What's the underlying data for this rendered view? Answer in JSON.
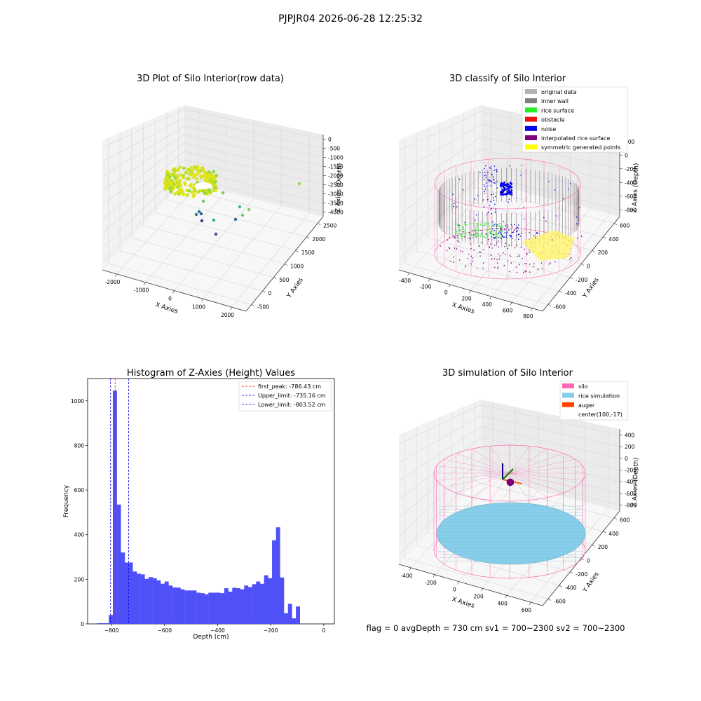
{
  "figure": {
    "suptitle": "PJPJR04 2026-06-28 12:25:32",
    "footer": "flag = 0     avgDepth = 730 cm  sv1 = 700~2300  sv2 = 700~2300"
  },
  "colors": {
    "grey": "#b3b3b3",
    "dark_grey": "#808080",
    "green": "#22ee22",
    "red": "#ee1111",
    "blue": "#0000ee",
    "purple": "#800080",
    "yellow": "#ffff00",
    "pink": "#ff69b4",
    "skyblue": "#87ceeb",
    "orange": "#ff4500",
    "hist_blue": "#5050f8"
  },
  "chart_data": [
    {
      "type": "scatter",
      "projection": "3d",
      "title": "3D Plot of Silo Interior(row data)",
      "xlabel": "X Axies",
      "ylabel": "Y Axies",
      "zlabel": "Z Axies (Depth)",
      "x_ticks": [
        "-2000",
        "-1000",
        "0",
        "1000",
        "2000"
      ],
      "y_ticks": [
        "-500",
        "0",
        "500",
        "1000",
        "1500",
        "2000",
        "2500"
      ],
      "z_ticks": [
        "0",
        "-500",
        "-1000",
        "-1500",
        "-2000",
        "-2500",
        "-3000",
        "-3500",
        "-4000"
      ],
      "xlim": [
        -2200,
        2200
      ],
      "ylim": [
        -700,
        2700
      ],
      "zlim": [
        -4300,
        300
      ],
      "colormap": "viridis",
      "grid": true
    },
    {
      "type": "scatter",
      "projection": "3d",
      "title": "3D classify of Silo Interior",
      "xlabel": "X Axies",
      "ylabel": "Y Axies",
      "zlabel": "Z Axies (Depth)",
      "x_ticks": [
        "-400",
        "-200",
        "0",
        "200",
        "400",
        "600",
        "800"
      ],
      "y_ticks": [
        "-600",
        "-400",
        "-200",
        "0",
        "200",
        "400",
        "600"
      ],
      "z_ticks": [
        "200",
        "0",
        "-200",
        "-400",
        "-600",
        "-800"
      ],
      "xlim": [
        -500,
        850
      ],
      "ylim": [
        -700,
        700
      ],
      "zlim": [
        -950,
        350
      ],
      "legend_position": "upper right",
      "legend": [
        {
          "label": "original data",
          "color": "#b3b3b3"
        },
        {
          "label": "inner wall",
          "color": "#808080"
        },
        {
          "label": "rice surface",
          "color": "#22ee22"
        },
        {
          "label": "obstacle",
          "color": "#ee1111"
        },
        {
          "label": "noise",
          "color": "#0000ee"
        },
        {
          "label": "interpolated rice surface",
          "color": "#800080"
        },
        {
          "label": "symmetric generated points",
          "color": "#ffff00"
        }
      ],
      "grid": true
    },
    {
      "type": "bar",
      "title": "Histogram of Z-Axies (Height) Values",
      "xlabel": "Depth (cm)",
      "ylabel": "Frequency",
      "x_ticks": [
        -800,
        -600,
        -400,
        -200,
        0
      ],
      "y_ticks": [
        0,
        200,
        400,
        600,
        800,
        1000
      ],
      "xlim": [
        -890,
        40
      ],
      "ylim": [
        0,
        1100
      ],
      "bin_width": 15,
      "bins": [
        {
          "x0": -855,
          "v": 3
        },
        {
          "x0": -840,
          "v": 3
        },
        {
          "x0": -825,
          "v": 3
        },
        {
          "x0": -810,
          "v": 40
        },
        {
          "x0": -795,
          "v": 1045
        },
        {
          "x0": -780,
          "v": 535
        },
        {
          "x0": -765,
          "v": 320
        },
        {
          "x0": -750,
          "v": 275
        },
        {
          "x0": -735,
          "v": 275
        },
        {
          "x0": -720,
          "v": 235
        },
        {
          "x0": -705,
          "v": 225
        },
        {
          "x0": -690,
          "v": 222
        },
        {
          "x0": -675,
          "v": 202
        },
        {
          "x0": -660,
          "v": 210
        },
        {
          "x0": -645,
          "v": 205
        },
        {
          "x0": -630,
          "v": 195
        },
        {
          "x0": -615,
          "v": 180
        },
        {
          "x0": -600,
          "v": 190
        },
        {
          "x0": -585,
          "v": 172
        },
        {
          "x0": -570,
          "v": 163
        },
        {
          "x0": -555,
          "v": 163
        },
        {
          "x0": -540,
          "v": 155
        },
        {
          "x0": -525,
          "v": 150
        },
        {
          "x0": -510,
          "v": 150
        },
        {
          "x0": -495,
          "v": 150
        },
        {
          "x0": -480,
          "v": 140
        },
        {
          "x0": -465,
          "v": 138
        },
        {
          "x0": -450,
          "v": 133
        },
        {
          "x0": -435,
          "v": 140
        },
        {
          "x0": -420,
          "v": 140
        },
        {
          "x0": -405,
          "v": 140
        },
        {
          "x0": -390,
          "v": 138
        },
        {
          "x0": -375,
          "v": 160
        },
        {
          "x0": -360,
          "v": 145
        },
        {
          "x0": -345,
          "v": 162
        },
        {
          "x0": -330,
          "v": 160
        },
        {
          "x0": -315,
          "v": 155
        },
        {
          "x0": -300,
          "v": 172
        },
        {
          "x0": -285,
          "v": 165
        },
        {
          "x0": -270,
          "v": 178
        },
        {
          "x0": -255,
          "v": 190
        },
        {
          "x0": -240,
          "v": 180
        },
        {
          "x0": -225,
          "v": 218
        },
        {
          "x0": -210,
          "v": 205
        },
        {
          "x0": -195,
          "v": 375
        },
        {
          "x0": -180,
          "v": 433
        },
        {
          "x0": -165,
          "v": 208
        },
        {
          "x0": -150,
          "v": 48
        },
        {
          "x0": -135,
          "v": 90
        },
        {
          "x0": -120,
          "v": 25
        },
        {
          "x0": -105,
          "v": 78
        }
      ],
      "vlines": [
        {
          "label": "first_peak: -786.43 cm",
          "x": -786.43,
          "color": "#ee1111"
        },
        {
          "label": "Upper_limit: -735.16 cm",
          "x": -735.16,
          "color": "#0000ee"
        },
        {
          "label": "Lower_limit: -803.52 cm",
          "x": -803.52,
          "color": "#0000ee"
        }
      ],
      "legend_position": "upper right",
      "grid": false
    },
    {
      "type": "scatter",
      "projection": "3d",
      "title": "3D simulation of Silo Interior",
      "xlabel": "X Axies",
      "ylabel": "Y Axies",
      "zlabel": "Z Axies (Depth)",
      "x_ticks": [
        "-400",
        "-200",
        "0",
        "200",
        "400",
        "600"
      ],
      "y_ticks": [
        "-600",
        "-400",
        "-200",
        "0",
        "200",
        "400",
        "600"
      ],
      "z_ticks": [
        "400",
        "200",
        "0",
        "-200",
        "-400",
        "-600",
        "-800"
      ],
      "xlim": [
        -500,
        750
      ],
      "ylim": [
        -700,
        700
      ],
      "zlim": [
        -950,
        500
      ],
      "legend_position": "upper right",
      "legend": [
        {
          "label": "silo",
          "color": "#ff69b4"
        },
        {
          "label": "rice simulation",
          "color": "#87ceeb"
        },
        {
          "label": "auger",
          "color": "#ff4500"
        },
        {
          "label": "center(100,-17)",
          "color": ""
        }
      ],
      "grid": true
    }
  ]
}
